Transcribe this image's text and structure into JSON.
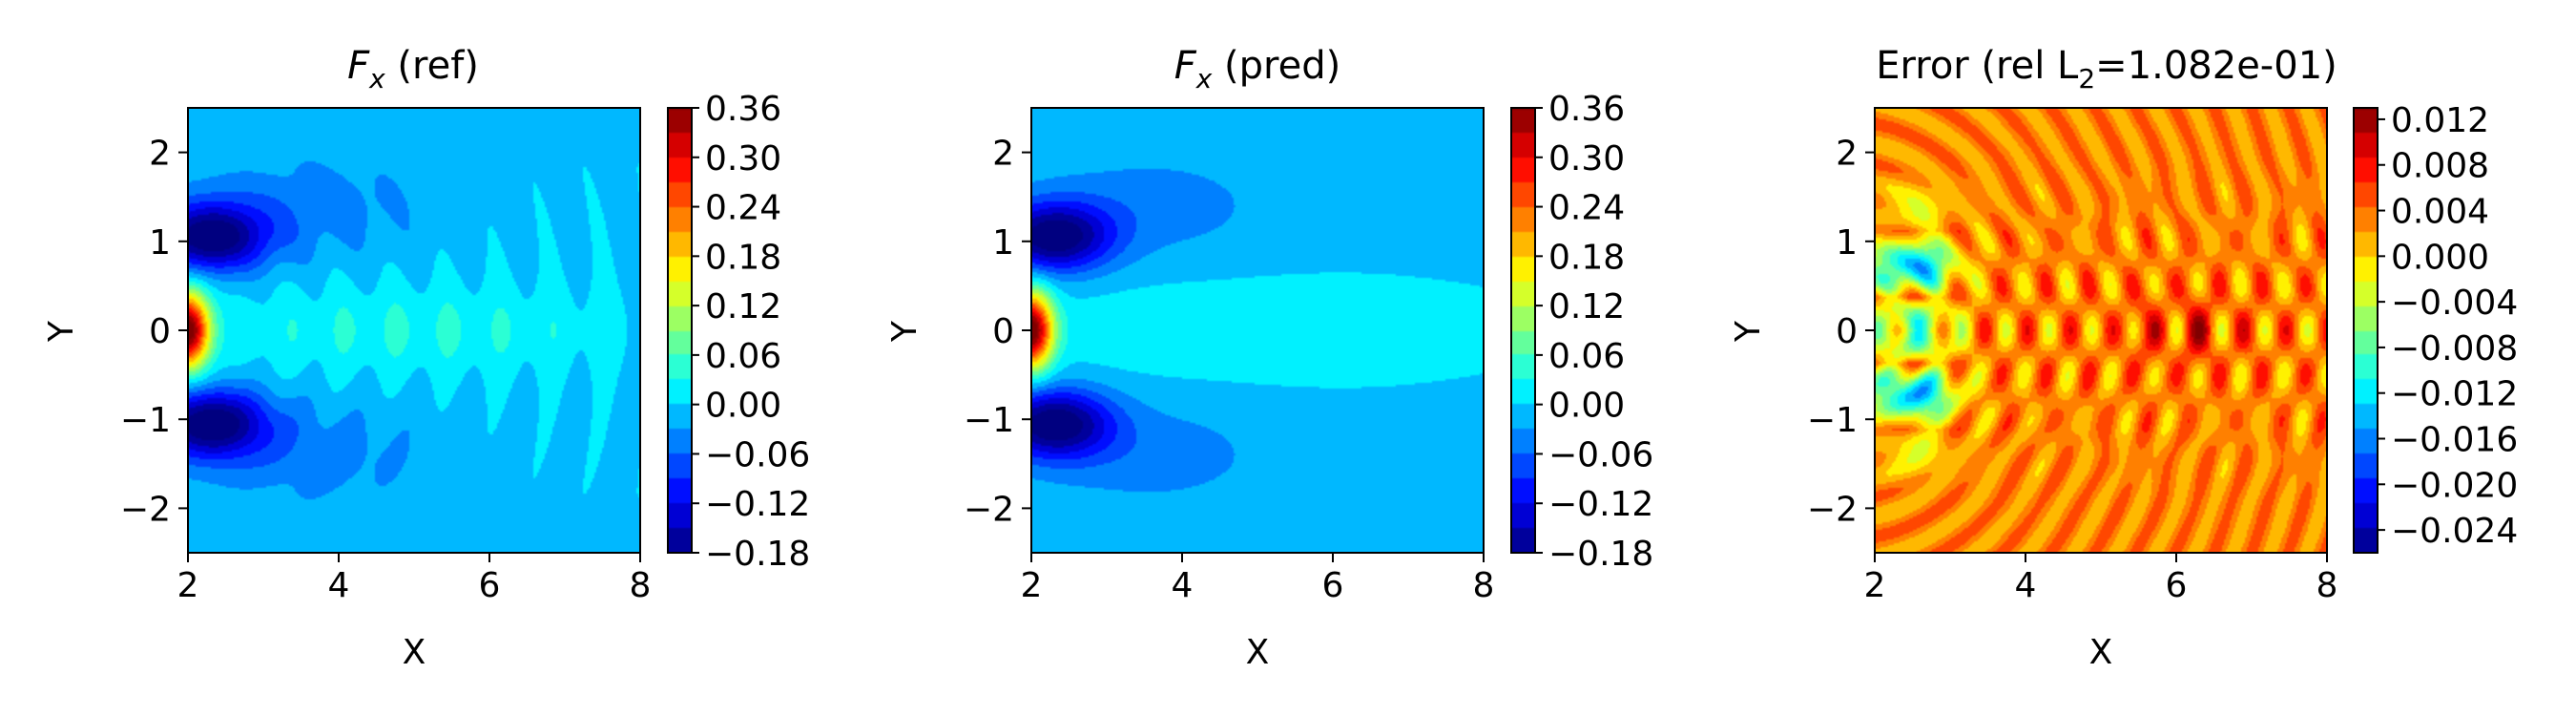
{
  "chart_data": [
    {
      "type": "heatmap",
      "field": "ref",
      "title": {
        "base": "F",
        "sub": "x",
        "rest": " (ref)"
      },
      "xlabel": "X",
      "ylabel": "Y",
      "xlim": [
        2,
        8
      ],
      "ylim": [
        -2.5,
        2.5
      ],
      "xticks": [
        "2",
        "4",
        "6",
        "8"
      ],
      "yticks": [
        "2",
        "1",
        "0",
        "−1",
        "−2"
      ],
      "colormap": "jet",
      "colorbar_range": [
        -0.18,
        0.36
      ],
      "colorbar_ticks": [
        "0.36",
        "0.30",
        "0.24",
        "0.18",
        "0.12",
        "0.06",
        "0.00",
        "−0.06",
        "−0.12",
        "−0.18"
      ]
    },
    {
      "type": "heatmap",
      "field": "pred",
      "title": {
        "base": "F",
        "sub": "x",
        "rest": " (pred)"
      },
      "xlabel": "X",
      "ylabel": "Y",
      "xlim": [
        2,
        8
      ],
      "ylim": [
        -2.5,
        2.5
      ],
      "xticks": [
        "2",
        "4",
        "6",
        "8"
      ],
      "yticks": [
        "2",
        "1",
        "0",
        "−1",
        "−2"
      ],
      "colormap": "jet",
      "colorbar_range": [
        -0.18,
        0.36
      ],
      "colorbar_ticks": [
        "0.36",
        "0.30",
        "0.24",
        "0.18",
        "0.12",
        "0.06",
        "0.00",
        "−0.06",
        "−0.12",
        "−0.18"
      ]
    },
    {
      "type": "heatmap",
      "field": "error",
      "title": {
        "base": "Error (rel L",
        "sub": "2",
        "rest": "=1.082e-01)"
      },
      "xlabel": "X",
      "ylabel": "Y",
      "xlim": [
        2,
        8
      ],
      "ylim": [
        -2.5,
        2.5
      ],
      "xticks": [
        "2",
        "4",
        "6",
        "8"
      ],
      "yticks": [
        "2",
        "1",
        "0",
        "−1",
        "−2"
      ],
      "colormap": "jet",
      "colorbar_range": [
        -0.026,
        0.013
      ],
      "colorbar_ticks": [
        "0.012",
        "0.008",
        "0.004",
        "0.000",
        "−0.004",
        "−0.008",
        "−0.012",
        "−0.016",
        "−0.020",
        "−0.024"
      ]
    }
  ]
}
